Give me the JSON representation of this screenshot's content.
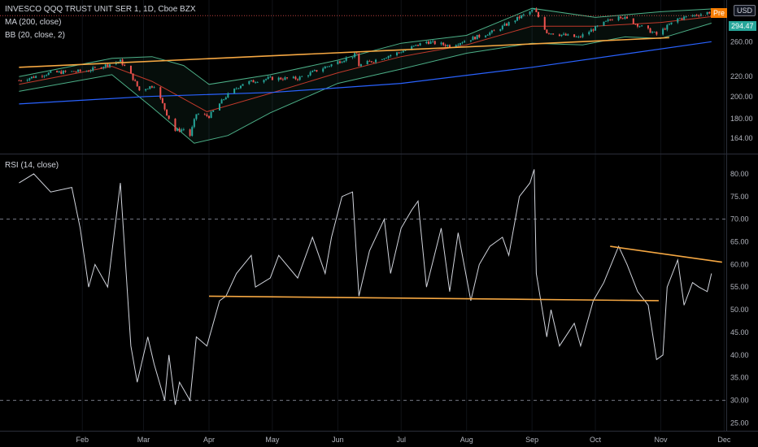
{
  "legend": {
    "symbol": "INVESCO QQQ TRUST UNIT SER 1, 1D, Cboe BZX",
    "ma": "MA (200, close)",
    "bb": "BB (20, close, 2)",
    "rsi": "RSI (14, close)"
  },
  "badges": {
    "pre": "Pre",
    "currency": "USD",
    "last_price": "294.47"
  },
  "colors": {
    "up": "#26a69a",
    "down": "#ef5350",
    "ma": "#2962ff",
    "bb_band": "#4caf87",
    "bb_mid": "#c0392b",
    "trendline": "#f5a742",
    "rsi": "#d1d4dc",
    "price_tag": "#26a69a"
  },
  "chart_data": [
    {
      "type": "candlestick",
      "title": "INVESCO QQQ TRUST UNIT SER 1, 1D, Cboe BZX",
      "y_ticks": [
        294.47,
        260.0,
        220.0,
        200.0,
        180.0,
        164.0
      ],
      "y_tick_labels": [
        "294.47",
        "260.00",
        "220.00",
        "200.00",
        "180.00",
        "164.00"
      ],
      "ylim": [
        154,
        310
      ],
      "scale": "log",
      "x_ticks": [
        "Feb",
        "Mar",
        "Apr",
        "May",
        "Jun",
        "Jul",
        "Aug",
        "Sep",
        "Oct",
        "Nov",
        "Dec"
      ],
      "close": [
        {
          "d": "2020-01-02",
          "v": 216
        },
        {
          "d": "2020-01-17",
          "v": 224
        },
        {
          "d": "2020-02-03",
          "v": 226
        },
        {
          "d": "2020-02-19",
          "v": 237
        },
        {
          "d": "2020-02-24",
          "v": 222
        },
        {
          "d": "2020-02-28",
          "v": 206
        },
        {
          "d": "2020-03-06",
          "v": 211
        },
        {
          "d": "2020-03-12",
          "v": 184
        },
        {
          "d": "2020-03-16",
          "v": 170
        },
        {
          "d": "2020-03-20",
          "v": 171
        },
        {
          "d": "2020-03-23",
          "v": 166
        },
        {
          "d": "2020-03-26",
          "v": 184
        },
        {
          "d": "2020-04-01",
          "v": 182
        },
        {
          "d": "2020-04-09",
          "v": 200
        },
        {
          "d": "2020-04-17",
          "v": 213
        },
        {
          "d": "2020-04-29",
          "v": 218
        },
        {
          "d": "2020-05-13",
          "v": 218
        },
        {
          "d": "2020-05-29",
          "v": 233
        },
        {
          "d": "2020-06-10",
          "v": 245
        },
        {
          "d": "2020-06-11",
          "v": 232
        },
        {
          "d": "2020-06-30",
          "v": 247
        },
        {
          "d": "2020-07-13",
          "v": 260
        },
        {
          "d": "2020-07-24",
          "v": 255
        },
        {
          "d": "2020-08-14",
          "v": 273
        },
        {
          "d": "2020-09-02",
          "v": 303
        },
        {
          "d": "2020-09-08",
          "v": 272
        },
        {
          "d": "2020-09-23",
          "v": 265
        },
        {
          "d": "2020-10-12",
          "v": 295
        },
        {
          "d": "2020-10-30",
          "v": 269
        },
        {
          "d": "2020-11-09",
          "v": 290
        },
        {
          "d": "2020-11-25",
          "v": 300
        }
      ],
      "ma_200": [
        {
          "d": "2020-01-02",
          "v": 193
        },
        {
          "d": "2020-03-02",
          "v": 200
        },
        {
          "d": "2020-05-01",
          "v": 204
        },
        {
          "d": "2020-07-01",
          "v": 213
        },
        {
          "d": "2020-09-01",
          "v": 230
        },
        {
          "d": "2020-10-15",
          "v": 245
        },
        {
          "d": "2020-11-25",
          "v": 260
        }
      ],
      "bollinger_mid_20": [
        {
          "d": "2020-01-02",
          "v": 212
        },
        {
          "d": "2020-02-15",
          "v": 231
        },
        {
          "d": "2020-03-05",
          "v": 215
        },
        {
          "d": "2020-03-31",
          "v": 186
        },
        {
          "d": "2020-04-30",
          "v": 203
        },
        {
          "d": "2020-06-01",
          "v": 224
        },
        {
          "d": "2020-07-01",
          "v": 242
        },
        {
          "d": "2020-08-01",
          "v": 256
        },
        {
          "d": "2020-09-01",
          "v": 280
        },
        {
          "d": "2020-10-01",
          "v": 280
        },
        {
          "d": "2020-11-01",
          "v": 285
        },
        {
          "d": "2020-11-25",
          "v": 293
        }
      ],
      "bollinger_upper_20": [
        {
          "d": "2020-01-02",
          "v": 220
        },
        {
          "d": "2020-02-15",
          "v": 240
        },
        {
          "d": "2020-03-05",
          "v": 242
        },
        {
          "d": "2020-03-20",
          "v": 232
        },
        {
          "d": "2020-04-01",
          "v": 212
        },
        {
          "d": "2020-04-30",
          "v": 222
        },
        {
          "d": "2020-06-01",
          "v": 238
        },
        {
          "d": "2020-07-01",
          "v": 258
        },
        {
          "d": "2020-08-01",
          "v": 268
        },
        {
          "d": "2020-09-01",
          "v": 305
        },
        {
          "d": "2020-10-01",
          "v": 292
        },
        {
          "d": "2020-11-01",
          "v": 300
        },
        {
          "d": "2020-11-25",
          "v": 304
        }
      ],
      "bollinger_lower_20": [
        {
          "d": "2020-01-02",
          "v": 205
        },
        {
          "d": "2020-02-15",
          "v": 222
        },
        {
          "d": "2020-03-05",
          "v": 190
        },
        {
          "d": "2020-03-25",
          "v": 160
        },
        {
          "d": "2020-04-10",
          "v": 166
        },
        {
          "d": "2020-04-30",
          "v": 185
        },
        {
          "d": "2020-06-01",
          "v": 213
        },
        {
          "d": "2020-07-01",
          "v": 228
        },
        {
          "d": "2020-08-01",
          "v": 246
        },
        {
          "d": "2020-09-01",
          "v": 258
        },
        {
          "d": "2020-09-25",
          "v": 256
        },
        {
          "d": "2020-10-15",
          "v": 266
        },
        {
          "d": "2020-11-01",
          "v": 264
        },
        {
          "d": "2020-11-25",
          "v": 284
        }
      ],
      "trendline": [
        {
          "d": "2020-01-02",
          "v": 230
        },
        {
          "d": "2020-11-05",
          "v": 265
        }
      ]
    },
    {
      "type": "line",
      "title": "RSI (14, close)",
      "y_ticks": [
        80.0,
        75.0,
        70.0,
        65.0,
        60.0,
        55.0,
        50.0,
        45.0,
        40.0,
        35.0,
        30.0,
        25.0
      ],
      "y_tick_labels": [
        "80.00",
        "75.00",
        "70.00",
        "65.00",
        "60.00",
        "55.00",
        "50.00",
        "45.00",
        "40.00",
        "35.00",
        "30.00",
        "25.00"
      ],
      "ylim": [
        24,
        82.5
      ],
      "reference_lines": [
        70,
        30
      ],
      "x_ticks": [
        "Feb",
        "Mar",
        "Apr",
        "May",
        "Jun",
        "Jul",
        "Aug",
        "Sep",
        "Oct",
        "Nov",
        "Dec"
      ],
      "rsi": [
        {
          "d": "2020-01-02",
          "v": 78
        },
        {
          "d": "2020-01-09",
          "v": 80
        },
        {
          "d": "2020-01-17",
          "v": 76
        },
        {
          "d": "2020-01-27",
          "v": 77
        },
        {
          "d": "2020-01-31",
          "v": 68
        },
        {
          "d": "2020-02-04",
          "v": 55
        },
        {
          "d": "2020-02-07",
          "v": 60
        },
        {
          "d": "2020-02-13",
          "v": 55
        },
        {
          "d": "2020-02-19",
          "v": 78
        },
        {
          "d": "2020-02-24",
          "v": 42
        },
        {
          "d": "2020-02-27",
          "v": 34
        },
        {
          "d": "2020-03-03",
          "v": 44
        },
        {
          "d": "2020-03-06",
          "v": 38
        },
        {
          "d": "2020-03-11",
          "v": 30
        },
        {
          "d": "2020-03-13",
          "v": 40
        },
        {
          "d": "2020-03-16",
          "v": 29
        },
        {
          "d": "2020-03-18",
          "v": 34
        },
        {
          "d": "2020-03-23",
          "v": 30
        },
        {
          "d": "2020-03-26",
          "v": 44
        },
        {
          "d": "2020-03-31",
          "v": 42
        },
        {
          "d": "2020-04-06",
          "v": 52
        },
        {
          "d": "2020-04-09",
          "v": 53
        },
        {
          "d": "2020-04-14",
          "v": 58
        },
        {
          "d": "2020-04-21",
          "v": 62
        },
        {
          "d": "2020-04-23",
          "v": 55
        },
        {
          "d": "2020-04-30",
          "v": 57
        },
        {
          "d": "2020-05-04",
          "v": 62
        },
        {
          "d": "2020-05-13",
          "v": 57
        },
        {
          "d": "2020-05-20",
          "v": 66
        },
        {
          "d": "2020-05-26",
          "v": 58
        },
        {
          "d": "2020-05-29",
          "v": 66
        },
        {
          "d": "2020-06-03",
          "v": 75
        },
        {
          "d": "2020-06-08",
          "v": 76
        },
        {
          "d": "2020-06-11",
          "v": 53
        },
        {
          "d": "2020-06-16",
          "v": 63
        },
        {
          "d": "2020-06-23",
          "v": 70
        },
        {
          "d": "2020-06-26",
          "v": 58
        },
        {
          "d": "2020-07-01",
          "v": 68
        },
        {
          "d": "2020-07-06",
          "v": 72
        },
        {
          "d": "2020-07-09",
          "v": 74
        },
        {
          "d": "2020-07-13",
          "v": 55
        },
        {
          "d": "2020-07-20",
          "v": 68
        },
        {
          "d": "2020-07-24",
          "v": 54
        },
        {
          "d": "2020-07-28",
          "v": 67
        },
        {
          "d": "2020-08-03",
          "v": 52
        },
        {
          "d": "2020-08-07",
          "v": 60
        },
        {
          "d": "2020-08-12",
          "v": 64
        },
        {
          "d": "2020-08-18",
          "v": 66
        },
        {
          "d": "2020-08-21",
          "v": 62
        },
        {
          "d": "2020-08-26",
          "v": 75
        },
        {
          "d": "2020-08-31",
          "v": 78
        },
        {
          "d": "2020-09-02",
          "v": 81
        },
        {
          "d": "2020-09-03",
          "v": 58
        },
        {
          "d": "2020-09-08",
          "v": 44
        },
        {
          "d": "2020-09-10",
          "v": 50
        },
        {
          "d": "2020-09-14",
          "v": 42
        },
        {
          "d": "2020-09-21",
          "v": 47
        },
        {
          "d": "2020-09-24",
          "v": 42
        },
        {
          "d": "2020-09-30",
          "v": 52
        },
        {
          "d": "2020-10-05",
          "v": 56
        },
        {
          "d": "2020-10-12",
          "v": 64
        },
        {
          "d": "2020-10-16",
          "v": 60
        },
        {
          "d": "2020-10-21",
          "v": 54
        },
        {
          "d": "2020-10-26",
          "v": 51
        },
        {
          "d": "2020-10-28",
          "v": 45
        },
        {
          "d": "2020-10-30",
          "v": 39
        },
        {
          "d": "2020-11-02",
          "v": 40
        },
        {
          "d": "2020-11-04",
          "v": 55
        },
        {
          "d": "2020-11-09",
          "v": 61
        },
        {
          "d": "2020-11-12",
          "v": 51
        },
        {
          "d": "2020-11-16",
          "v": 56
        },
        {
          "d": "2020-11-19",
          "v": 55
        },
        {
          "d": "2020-11-23",
          "v": 54
        },
        {
          "d": "2020-11-25",
          "v": 58
        }
      ],
      "support_line": [
        {
          "d": "2020-04-01",
          "v": 53
        },
        {
          "d": "2020-10-31",
          "v": 52
        }
      ],
      "resistance_line": [
        {
          "d": "2020-10-08",
          "v": 64
        },
        {
          "d": "2020-11-30",
          "v": 60.5
        }
      ]
    }
  ]
}
